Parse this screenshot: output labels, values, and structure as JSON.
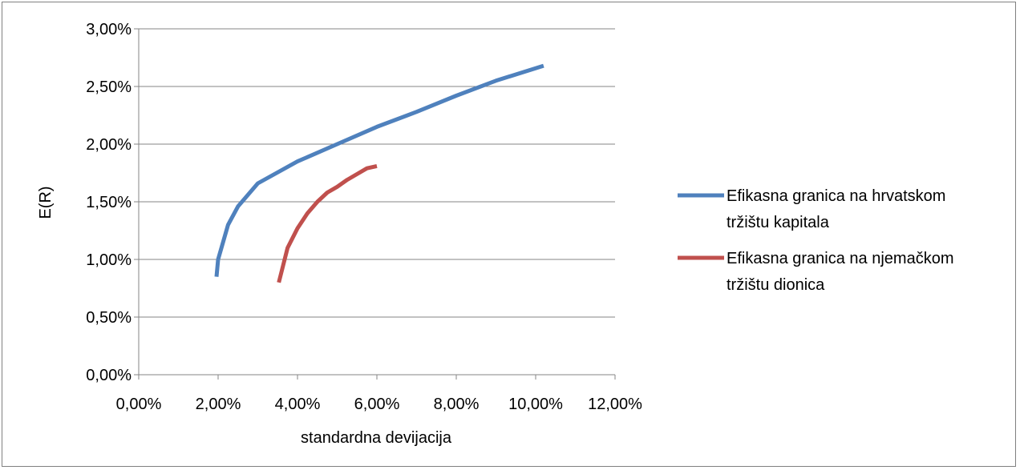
{
  "chart_data": {
    "type": "line",
    "xlabel": "standardna devijacija",
    "ylabel": "E(R)",
    "xlim": [
      0,
      0.12
    ],
    "ylim": [
      0,
      0.03
    ],
    "x_ticks": [
      "0,00%",
      "2,00%",
      "4,00%",
      "6,00%",
      "8,00%",
      "10,00%",
      "12,00%"
    ],
    "y_ticks": [
      "0,00%",
      "0,50%",
      "1,00%",
      "1,50%",
      "2,00%",
      "2,50%",
      "3,00%"
    ],
    "grid": "horizontal",
    "legend": "right",
    "series": [
      {
        "name": "Efikasna granica na hrvatskom tržištu kapitala",
        "color": "#4F81BD",
        "points": [
          [
            0.0196,
            0.0085
          ],
          [
            0.02,
            0.01
          ],
          [
            0.0225,
            0.013
          ],
          [
            0.025,
            0.0146
          ],
          [
            0.03,
            0.0166
          ],
          [
            0.04,
            0.0185
          ],
          [
            0.05,
            0.02
          ],
          [
            0.06,
            0.0215
          ],
          [
            0.07,
            0.0228
          ],
          [
            0.08,
            0.0242
          ],
          [
            0.09,
            0.0255
          ],
          [
            0.102,
            0.0268
          ]
        ]
      },
      {
        "name": "Efikasna granica na njemačkom tržištu dionica",
        "color": "#C0504D",
        "points": [
          [
            0.0353,
            0.008
          ],
          [
            0.0375,
            0.011
          ],
          [
            0.04,
            0.0127
          ],
          [
            0.0425,
            0.014
          ],
          [
            0.045,
            0.015
          ],
          [
            0.0475,
            0.0158
          ],
          [
            0.05,
            0.0163
          ],
          [
            0.0525,
            0.0169
          ],
          [
            0.055,
            0.0174
          ],
          [
            0.0575,
            0.0179
          ],
          [
            0.06,
            0.0181
          ]
        ]
      }
    ]
  }
}
